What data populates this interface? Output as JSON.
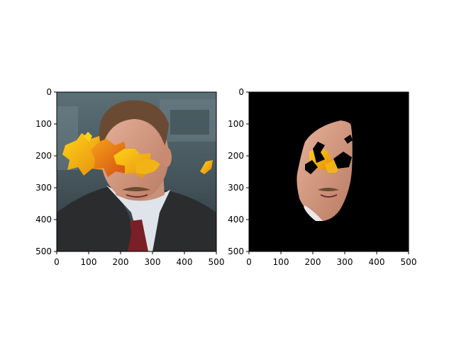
{
  "chart_data": [
    {
      "type": "image",
      "content": "photo of a man in a suit and red tie with orange autumn leaves overlaid across his eyes and forehead; one small leaf at right edge",
      "xlim": [
        0,
        500
      ],
      "ylim": [
        500,
        0
      ],
      "x_ticks": [
        "0",
        "100",
        "200",
        "300",
        "400",
        "500"
      ],
      "y_ticks": [
        "0",
        "100",
        "200",
        "300",
        "400",
        "500"
      ]
    },
    {
      "type": "image",
      "content": "face-region mask of the same image on black background, leaf occlusions cut out as holes",
      "xlim": [
        0,
        500
      ],
      "ylim": [
        500,
        0
      ],
      "x_ticks": [
        "0",
        "100",
        "200",
        "300",
        "400",
        "500"
      ],
      "y_ticks": [
        "0",
        "100",
        "200",
        "300",
        "400",
        "500"
      ]
    }
  ]
}
